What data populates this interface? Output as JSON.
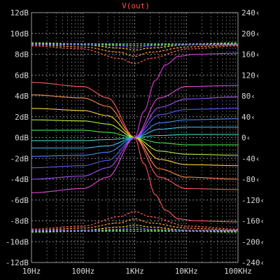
{
  "chart_data": {
    "type": "line",
    "title": "V(out)",
    "x_scale": "log",
    "xlim": [
      10,
      100000
    ],
    "x_ticks": [
      10,
      100,
      1000,
      10000,
      100000
    ],
    "x_tick_labels": [
      "10Hz",
      "100Hz",
      "1KHz",
      "10KHz",
      "100KHz"
    ],
    "y_left": {
      "unit": "dB",
      "ylim": [
        -12,
        12
      ],
      "ticks": [
        12,
        10,
        8,
        6,
        4,
        2,
        0,
        -2,
        -4,
        -6,
        -8,
        -10,
        -12
      ],
      "tick_labels": [
        "12dB",
        "10dB",
        "8dB",
        "6dB",
        "4dB",
        "2dB",
        "0dB",
        "-2dB",
        "-4dB",
        "-6dB",
        "-8dB",
        "-10dB",
        "-12dB"
      ]
    },
    "y_right": {
      "unit": "phase",
      "ylim": [
        -240,
        240
      ],
      "ticks": [
        240,
        200,
        160,
        120,
        80,
        40,
        0,
        -40,
        -80,
        -120,
        -160,
        -200,
        -240
      ],
      "tick_labels": [
        "240‹",
        "200‹",
        "160‹",
        "120‹",
        "80‹",
        "40‹",
        "0‹",
        "-40‹",
        "-80‹",
        "-120‹",
        "-160‹",
        "-200‹",
        "-240‹"
      ]
    },
    "grid": true,
    "colors": {
      "background": "#000000",
      "grid_major": "#8c8c8c",
      "grid_minor": "#5a5a5a",
      "axis": "#9a9a9a",
      "title": "#ff4d4d",
      "text": "#d8d8d8"
    },
    "series": [
      {
        "color": "#ff5a5a",
        "style": "solid",
        "points": [
          [
            10,
            5.3
          ],
          [
            100,
            4.9
          ],
          [
            300,
            3.8
          ],
          [
            1000,
            0
          ],
          [
            3000,
            -3.8
          ],
          [
            10000,
            -4.9
          ],
          [
            100000,
            -5.0
          ]
        ]
      },
      {
        "color": "#ff8c46",
        "style": "solid",
        "points": [
          [
            10,
            4.1
          ],
          [
            100,
            3.8
          ],
          [
            300,
            3.0
          ],
          [
            1000,
            0
          ],
          [
            3000,
            -3.0
          ],
          [
            10000,
            -3.8
          ],
          [
            100000,
            -4.0
          ]
        ]
      },
      {
        "color": "#ffd23c",
        "style": "solid",
        "points": [
          [
            10,
            2.8
          ],
          [
            100,
            2.6
          ],
          [
            300,
            2.1
          ],
          [
            1000,
            0
          ],
          [
            3000,
            -2.1
          ],
          [
            10000,
            -2.6
          ],
          [
            100000,
            -2.7
          ]
        ]
      },
      {
        "color": "#b4f03c",
        "style": "solid",
        "points": [
          [
            10,
            1.7
          ],
          [
            100,
            1.6
          ],
          [
            300,
            1.3
          ],
          [
            1000,
            0
          ],
          [
            3000,
            -1.3
          ],
          [
            10000,
            -1.6
          ],
          [
            100000,
            -1.7
          ]
        ]
      },
      {
        "color": "#46e646",
        "style": "solid",
        "points": [
          [
            10,
            0.7
          ],
          [
            100,
            0.7
          ],
          [
            300,
            0.5
          ],
          [
            1000,
            0
          ],
          [
            3000,
            -0.5
          ],
          [
            10000,
            -0.7
          ],
          [
            100000,
            -0.7
          ]
        ]
      },
      {
        "color": "#3cd2be",
        "style": "solid",
        "points": [
          [
            10,
            -0.3
          ],
          [
            100,
            -0.3
          ],
          [
            300,
            -0.2
          ],
          [
            1000,
            0
          ],
          [
            3000,
            0.2
          ],
          [
            10000,
            0.3
          ],
          [
            100000,
            0.3
          ]
        ]
      },
      {
        "color": "#3cc8ff",
        "style": "solid",
        "points": [
          [
            10,
            -1.0
          ],
          [
            100,
            -1.0
          ],
          [
            300,
            -0.8
          ],
          [
            1000,
            0
          ],
          [
            3000,
            0.8
          ],
          [
            10000,
            1.0
          ],
          [
            100000,
            1.0
          ]
        ]
      },
      {
        "color": "#3c8cff",
        "style": "solid",
        "points": [
          [
            10,
            -1.8
          ],
          [
            100,
            -1.7
          ],
          [
            300,
            -1.4
          ],
          [
            1000,
            0
          ],
          [
            3000,
            1.4
          ],
          [
            10000,
            1.7
          ],
          [
            100000,
            1.8
          ]
        ]
      },
      {
        "color": "#5a5aff",
        "style": "solid",
        "points": [
          [
            10,
            -2.9
          ],
          [
            100,
            -2.7
          ],
          [
            300,
            -2.2
          ],
          [
            1000,
            0
          ],
          [
            3000,
            2.2
          ],
          [
            10000,
            2.7
          ],
          [
            100000,
            2.8
          ]
        ]
      },
      {
        "color": "#a050ff",
        "style": "solid",
        "points": [
          [
            10,
            -4.0
          ],
          [
            100,
            -3.7
          ],
          [
            300,
            -2.9
          ],
          [
            1000,
            0
          ],
          [
            3000,
            2.9
          ],
          [
            10000,
            3.7
          ],
          [
            100000,
            3.9
          ]
        ]
      },
      {
        "color": "#e646dc",
        "style": "solid",
        "points": [
          [
            10,
            -5.3
          ],
          [
            100,
            -4.9
          ],
          [
            300,
            -3.8
          ],
          [
            1000,
            0
          ],
          [
            3000,
            3.8
          ],
          [
            10000,
            4.9
          ],
          [
            100000,
            5.0
          ]
        ]
      },
      {
        "color": "#dc3cdc",
        "style": "solid",
        "points": [
          [
            1000,
            0
          ],
          [
            1500,
            2.5
          ],
          [
            2500,
            5.5
          ],
          [
            4000,
            7.0
          ],
          [
            7000,
            7.8
          ],
          [
            15000,
            8.0
          ],
          [
            100000,
            8.1
          ]
        ]
      },
      {
        "color": "#ff5a5a",
        "style": "solid",
        "points": [
          [
            1000,
            0
          ],
          [
            1500,
            -2.5
          ],
          [
            2500,
            -5.5
          ],
          [
            4000,
            -7.0
          ],
          [
            7000,
            -7.8
          ],
          [
            15000,
            -8.0
          ],
          [
            100000,
            -8.1
          ]
        ]
      },
      {
        "color": "#ff5a5a",
        "style": "dashed",
        "points": [
          [
            10,
            8.8
          ],
          [
            100,
            8.5
          ],
          [
            500,
            7.6
          ],
          [
            1000,
            7.1
          ],
          [
            2000,
            7.6
          ],
          [
            10000,
            8.5
          ],
          [
            100000,
            8.8
          ]
        ]
      },
      {
        "color": "#ffa03c",
        "style": "dashed",
        "points": [
          [
            10,
            8.9
          ],
          [
            100,
            8.7
          ],
          [
            500,
            8.2
          ],
          [
            1000,
            7.8
          ],
          [
            2000,
            8.2
          ],
          [
            10000,
            8.7
          ],
          [
            100000,
            8.9
          ]
        ]
      },
      {
        "color": "#ffdc3c",
        "style": "dashed",
        "points": [
          [
            10,
            9.0
          ],
          [
            100,
            8.9
          ],
          [
            500,
            8.6
          ],
          [
            1000,
            8.4
          ],
          [
            2000,
            8.6
          ],
          [
            10000,
            8.9
          ],
          [
            100000,
            9.0
          ]
        ]
      },
      {
        "color": "#78f03c",
        "style": "dashed",
        "points": [
          [
            10,
            9.1
          ],
          [
            100,
            9.0
          ],
          [
            500,
            8.9
          ],
          [
            1000,
            8.8
          ],
          [
            2000,
            8.9
          ],
          [
            10000,
            9.0
          ],
          [
            100000,
            9.1
          ]
        ]
      },
      {
        "color": "#3cd2dc",
        "style": "dashed",
        "points": [
          [
            10,
            9.0
          ],
          [
            100,
            9.0
          ],
          [
            500,
            9.0
          ],
          [
            1000,
            9.0
          ],
          [
            2000,
            9.0
          ],
          [
            10000,
            9.0
          ],
          [
            100000,
            9.0
          ]
        ]
      },
      {
        "color": "#a050ff",
        "style": "dashed",
        "points": [
          [
            10,
            8.9
          ],
          [
            100,
            8.9
          ],
          [
            500,
            8.8
          ],
          [
            1000,
            8.6
          ],
          [
            2000,
            8.8
          ],
          [
            10000,
            8.9
          ],
          [
            100000,
            8.9
          ]
        ]
      },
      {
        "color": "#ff5a5a",
        "style": "dashed",
        "points": [
          [
            10,
            -8.8
          ],
          [
            100,
            -8.5
          ],
          [
            500,
            -7.6
          ],
          [
            1000,
            -7.1
          ],
          [
            2000,
            -7.6
          ],
          [
            10000,
            -8.5
          ],
          [
            100000,
            -8.8
          ]
        ]
      },
      {
        "color": "#ffa03c",
        "style": "dashed",
        "points": [
          [
            10,
            -8.9
          ],
          [
            100,
            -8.7
          ],
          [
            500,
            -8.2
          ],
          [
            1000,
            -7.8
          ],
          [
            2000,
            -8.2
          ],
          [
            10000,
            -8.7
          ],
          [
            100000,
            -8.9
          ]
        ]
      },
      {
        "color": "#ffdc3c",
        "style": "dashed",
        "points": [
          [
            10,
            -9.0
          ],
          [
            100,
            -8.9
          ],
          [
            500,
            -8.6
          ],
          [
            1000,
            -8.4
          ],
          [
            2000,
            -8.6
          ],
          [
            10000,
            -8.9
          ],
          [
            100000,
            -9.0
          ]
        ]
      },
      {
        "color": "#78f03c",
        "style": "dashed",
        "points": [
          [
            10,
            -9.1
          ],
          [
            100,
            -9.0
          ],
          [
            500,
            -8.9
          ],
          [
            1000,
            -8.8
          ],
          [
            2000,
            -8.9
          ],
          [
            10000,
            -9.0
          ],
          [
            100000,
            -9.1
          ]
        ]
      },
      {
        "color": "#3cd2dc",
        "style": "dashed",
        "points": [
          [
            10,
            -9.0
          ],
          [
            100,
            -9.0
          ],
          [
            500,
            -9.0
          ],
          [
            1000,
            -9.0
          ],
          [
            2000,
            -9.0
          ],
          [
            10000,
            -9.0
          ],
          [
            100000,
            -9.0
          ]
        ]
      },
      {
        "color": "#a050ff",
        "style": "dashed",
        "points": [
          [
            10,
            -8.9
          ],
          [
            100,
            -8.9
          ],
          [
            500,
            -8.8
          ],
          [
            1000,
            -8.6
          ],
          [
            2000,
            -8.8
          ],
          [
            10000,
            -8.9
          ],
          [
            100000,
            -8.9
          ]
        ]
      }
    ]
  }
}
